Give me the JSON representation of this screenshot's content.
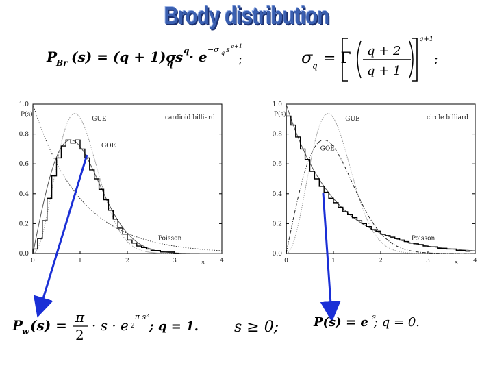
{
  "title": "Brody distribution",
  "formulas": {
    "brody_lhs": "P",
    "brody_sub": "Br",
    "brody_arg": "(s) = (q + 1)σ",
    "brody_sub_q": "q",
    "brody_s": "s",
    "brody_exp_q": "q",
    "brody_dot": "· e",
    "brody_exp": "−σ",
    "brody_exp2": "q",
    "brody_exp3": "s",
    "brody_exp4": "q+1",
    "semicolon": ";",
    "sigma": "σ",
    "sigma_sub": "q",
    "eq_gamma": "= Γ",
    "frac_num": "q + 2",
    "frac_den": "q + 1",
    "power": "q+1",
    "wigner_lhs": "P",
    "wigner_sub": "w",
    "wigner_mid": "(s) =",
    "pi": "π",
    "two": "2",
    "wigner_rest": "· s · e",
    "wigner_exp": "− π s²",
    "wigner_exp_2": "2",
    "wigner_q": "; q = 1.",
    "s_cond": "s ≥ 0;",
    "poisson": "P(s) = e",
    "poisson_exp": "−s",
    "poisson_q": "; q = 0."
  },
  "chart_data": [
    {
      "type": "line",
      "title": "",
      "annotation": "cardioid billiard",
      "xlabel": "s",
      "ylabel": "P(s)",
      "xlim": [
        0,
        4
      ],
      "ylim": [
        0,
        1
      ],
      "xticks": [
        "0",
        "1",
        "2",
        "3",
        "4"
      ],
      "yticks": [
        "0.0",
        "0.2",
        "0.4",
        "0.6",
        "0.8",
        "1.0"
      ],
      "curve_labels": [
        "GUE",
        "GOE",
        "Poisson"
      ],
      "series": [
        {
          "name": "GUE",
          "style": "dotted-light"
        },
        {
          "name": "GOE",
          "style": "solid"
        },
        {
          "name": "Poisson",
          "style": "dotted"
        },
        {
          "style": "histogram",
          "x": [
            0.0,
            0.1,
            0.2,
            0.3,
            0.4,
            0.5,
            0.6,
            0.7,
            0.8,
            0.9,
            1.0,
            1.1,
            1.2,
            1.3,
            1.4,
            1.5,
            1.6,
            1.7,
            1.8,
            1.9,
            2.0,
            2.1,
            2.2,
            2.3,
            2.4,
            2.5,
            2.6,
            2.7,
            2.8,
            2.9,
            3.0
          ],
          "values": [
            0.03,
            0.1,
            0.22,
            0.37,
            0.52,
            0.64,
            0.72,
            0.76,
            0.74,
            0.76,
            0.7,
            0.64,
            0.56,
            0.5,
            0.43,
            0.36,
            0.29,
            0.23,
            0.17,
            0.13,
            0.09,
            0.07,
            0.05,
            0.04,
            0.03,
            0.02,
            0.02,
            0.01,
            0.01,
            0.01,
            0.0
          ]
        }
      ]
    },
    {
      "type": "line",
      "title": "",
      "annotation": "circle billiard",
      "xlabel": "s",
      "ylabel": "P(s)",
      "xlim": [
        0,
        4
      ],
      "ylim": [
        0,
        1
      ],
      "xticks": [
        "0",
        "1",
        "2",
        "3",
        "4"
      ],
      "yticks": [
        "0.0",
        "0.2",
        "0.4",
        "0.6",
        "0.8",
        "1.0"
      ],
      "curve_labels": [
        "GUE",
        "GOE",
        "Poisson"
      ],
      "series": [
        {
          "name": "GUE",
          "style": "dotted-light"
        },
        {
          "name": "GOE",
          "style": "dash-dot"
        },
        {
          "name": "Poisson",
          "style": "solid"
        },
        {
          "style": "histogram",
          "x": [
            0.0,
            0.1,
            0.2,
            0.3,
            0.4,
            0.5,
            0.6,
            0.7,
            0.8,
            0.9,
            1.0,
            1.1,
            1.2,
            1.3,
            1.4,
            1.5,
            1.6,
            1.7,
            1.8,
            1.9,
            2.0,
            2.1,
            2.2,
            2.3,
            2.4,
            2.5,
            2.6,
            2.7,
            2.8,
            2.9,
            3.0,
            3.2,
            3.4,
            3.6,
            3.8
          ],
          "values": [
            0.92,
            0.86,
            0.78,
            0.7,
            0.63,
            0.55,
            0.5,
            0.45,
            0.41,
            0.37,
            0.34,
            0.31,
            0.28,
            0.26,
            0.24,
            0.22,
            0.2,
            0.18,
            0.16,
            0.15,
            0.13,
            0.12,
            0.11,
            0.1,
            0.09,
            0.08,
            0.07,
            0.065,
            0.06,
            0.05,
            0.045,
            0.035,
            0.03,
            0.02,
            0.015
          ]
        }
      ]
    }
  ]
}
